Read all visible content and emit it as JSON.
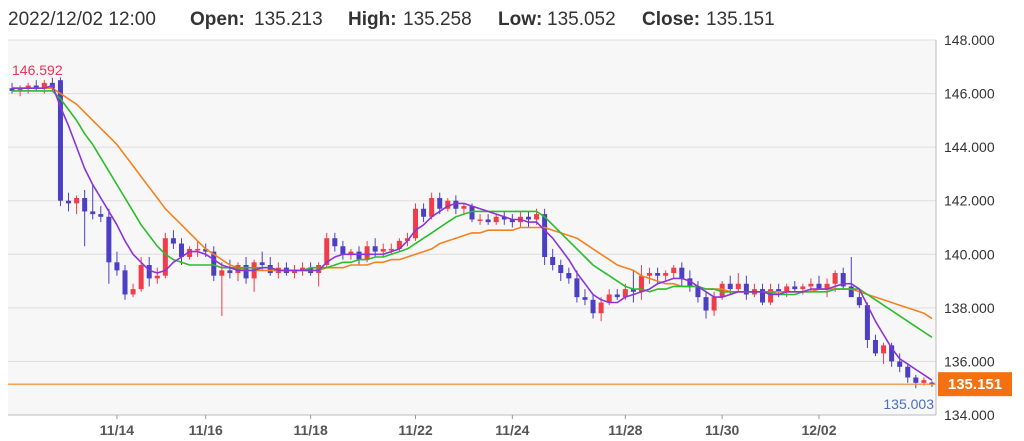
{
  "header": {
    "datetime": "2022/12/02 12:00",
    "open_label": "Open:",
    "open": "135.213",
    "high_label": "High:",
    "high": "135.258",
    "low_label": "Low:",
    "low": "135.052",
    "close_label": "Close:",
    "close": "135.151"
  },
  "colors": {
    "up": "#f23c4a",
    "down": "#4b3fc4",
    "ma_fast": "#8b34d9",
    "ma_mid": "#2bbd2b",
    "ma_slow": "#f58220",
    "close_line": "#f58220",
    "plot_bg": "#f7f7f7",
    "grid": "#dddddd",
    "high_label": "#e8335a",
    "low_label": "#4a6fc2"
  },
  "chart_data": {
    "type": "candlestick",
    "title": "",
    "xlabel": "",
    "ylabel": "",
    "ylim": [
      134.0,
      148.0
    ],
    "y_ticks": [
      "148.000",
      "146.000",
      "144.000",
      "142.000",
      "140.000",
      "138.000",
      "136.000",
      "134.000"
    ],
    "x_tick_labels": [
      "11/14",
      "11/16",
      "11/18",
      "11/22",
      "11/24",
      "11/28",
      "11/30",
      "12/02"
    ],
    "x_tick_index": [
      13,
      24,
      37,
      50,
      62,
      76,
      88,
      100
    ],
    "grid": true,
    "max_label": "146.592",
    "min_label": "135.003",
    "close_value": 135.151,
    "close_tag": "135.151",
    "candles": [
      [
        146.2,
        146.4,
        146.0,
        146.1
      ],
      [
        146.1,
        146.3,
        145.9,
        146.2
      ],
      [
        146.2,
        146.4,
        146.0,
        146.3
      ],
      [
        146.3,
        146.5,
        146.1,
        146.2
      ],
      [
        146.2,
        146.5,
        146.0,
        146.4
      ],
      [
        146.4,
        146.59,
        146.1,
        146.2
      ],
      [
        146.5,
        146.6,
        141.8,
        142.0
      ],
      [
        142.0,
        142.3,
        141.6,
        141.9
      ],
      [
        141.9,
        142.2,
        141.5,
        142.1
      ],
      [
        142.1,
        142.4,
        140.3,
        141.6
      ],
      [
        141.6,
        142.6,
        141.3,
        141.5
      ],
      [
        141.5,
        141.8,
        141.2,
        141.4
      ],
      [
        141.4,
        141.7,
        138.9,
        139.7
      ],
      [
        139.7,
        140.1,
        139.2,
        139.4
      ],
      [
        139.4,
        139.6,
        138.3,
        138.5
      ],
      [
        138.5,
        138.9,
        138.4,
        138.7
      ],
      [
        138.7,
        139.9,
        138.6,
        139.6
      ],
      [
        139.6,
        139.9,
        138.8,
        139.1
      ],
      [
        139.1,
        139.5,
        138.9,
        139.2
      ],
      [
        139.2,
        140.8,
        139.1,
        140.6
      ],
      [
        140.6,
        140.9,
        140.2,
        140.4
      ],
      [
        140.4,
        140.6,
        139.6,
        139.9
      ],
      [
        139.9,
        140.3,
        139.8,
        140.2
      ],
      [
        140.2,
        140.5,
        139.9,
        140.2
      ],
      [
        140.2,
        140.4,
        139.9,
        140.1
      ],
      [
        140.1,
        140.3,
        139.0,
        139.2
      ],
      [
        139.2,
        139.7,
        137.7,
        139.4
      ],
      [
        139.4,
        139.8,
        139.1,
        139.3
      ],
      [
        139.3,
        139.7,
        139.0,
        139.6
      ],
      [
        139.6,
        139.9,
        138.9,
        139.1
      ],
      [
        139.1,
        139.8,
        138.6,
        139.7
      ],
      [
        139.7,
        140.1,
        139.4,
        139.6
      ],
      [
        139.6,
        139.9,
        139.2,
        139.3
      ],
      [
        139.3,
        139.7,
        139.1,
        139.5
      ],
      [
        139.5,
        139.7,
        139.2,
        139.3
      ],
      [
        139.3,
        139.6,
        139.1,
        139.4
      ],
      [
        139.4,
        139.7,
        139.2,
        139.5
      ],
      [
        139.5,
        139.7,
        139.2,
        139.3
      ],
      [
        139.3,
        139.7,
        138.8,
        139.6
      ],
      [
        139.6,
        140.8,
        139.5,
        140.6
      ],
      [
        140.6,
        140.8,
        140.1,
        140.3
      ],
      [
        140.3,
        140.5,
        139.8,
        140.0
      ],
      [
        140.0,
        140.2,
        139.8,
        140.1
      ],
      [
        140.1,
        140.3,
        139.6,
        139.8
      ],
      [
        139.8,
        140.5,
        139.7,
        140.3
      ],
      [
        140.3,
        140.6,
        139.9,
        140.1
      ],
      [
        140.1,
        140.4,
        139.9,
        140.2
      ],
      [
        140.2,
        140.4,
        140.0,
        140.2
      ],
      [
        140.2,
        140.6,
        140.1,
        140.5
      ],
      [
        140.5,
        140.8,
        140.3,
        140.6
      ],
      [
        140.6,
        141.9,
        140.5,
        141.7
      ],
      [
        141.7,
        141.9,
        141.2,
        141.4
      ],
      [
        141.4,
        142.3,
        141.3,
        142.1
      ],
      [
        142.1,
        142.3,
        141.5,
        141.7
      ],
      [
        141.7,
        142.1,
        141.6,
        142.0
      ],
      [
        142.0,
        142.2,
        141.5,
        141.7
      ],
      [
        141.7,
        141.9,
        141.5,
        141.8
      ],
      [
        141.8,
        141.9,
        141.2,
        141.3
      ],
      [
        141.3,
        141.5,
        141.1,
        141.3
      ],
      [
        141.3,
        141.5,
        141.1,
        141.2
      ],
      [
        141.2,
        141.5,
        141.1,
        141.4
      ],
      [
        141.4,
        141.6,
        141.1,
        141.3
      ],
      [
        141.3,
        141.5,
        141.0,
        141.2
      ],
      [
        141.2,
        141.6,
        141.0,
        141.4
      ],
      [
        141.4,
        141.6,
        141.0,
        141.3
      ],
      [
        141.3,
        141.7,
        141.1,
        141.5
      ],
      [
        141.5,
        141.7,
        139.6,
        139.9
      ],
      [
        139.9,
        140.2,
        139.4,
        139.6
      ],
      [
        139.6,
        139.8,
        139.0,
        139.3
      ],
      [
        139.3,
        139.5,
        138.9,
        139.1
      ],
      [
        139.1,
        139.4,
        138.2,
        138.4
      ],
      [
        138.4,
        138.7,
        138.1,
        138.3
      ],
      [
        138.3,
        138.5,
        137.6,
        137.8
      ],
      [
        137.8,
        138.4,
        137.5,
        138.2
      ],
      [
        138.2,
        138.7,
        138.1,
        138.5
      ],
      [
        138.5,
        138.7,
        138.3,
        138.4
      ],
      [
        138.4,
        138.9,
        138.3,
        138.7
      ],
      [
        138.7,
        139.4,
        138.2,
        138.6
      ],
      [
        138.6,
        139.6,
        138.3,
        139.2
      ],
      [
        139.2,
        139.5,
        138.9,
        139.3
      ],
      [
        139.3,
        139.5,
        138.9,
        139.2
      ],
      [
        139.2,
        139.4,
        139.0,
        139.3
      ],
      [
        139.3,
        139.6,
        139.1,
        139.5
      ],
      [
        139.5,
        139.7,
        138.8,
        139.1
      ],
      [
        139.1,
        139.4,
        138.6,
        138.8
      ],
      [
        138.8,
        139.0,
        138.2,
        138.4
      ],
      [
        138.4,
        138.6,
        137.6,
        137.9
      ],
      [
        137.9,
        138.6,
        137.7,
        138.4
      ],
      [
        138.4,
        139.0,
        138.3,
        138.9
      ],
      [
        138.9,
        139.2,
        138.5,
        138.7
      ],
      [
        138.7,
        139.3,
        138.6,
        138.9
      ],
      [
        138.9,
        139.2,
        138.3,
        138.5
      ],
      [
        138.5,
        138.9,
        138.4,
        138.7
      ],
      [
        138.7,
        138.9,
        138.1,
        138.2
      ],
      [
        138.2,
        138.9,
        138.1,
        138.7
      ],
      [
        138.7,
        138.9,
        138.4,
        138.6
      ],
      [
        138.6,
        138.9,
        138.4,
        138.8
      ],
      [
        138.8,
        139.0,
        138.6,
        138.7
      ],
      [
        138.7,
        138.9,
        138.5,
        138.8
      ],
      [
        138.8,
        139.1,
        138.6,
        138.9
      ],
      [
        138.9,
        139.2,
        138.7,
        138.7
      ],
      [
        138.7,
        139.1,
        138.4,
        138.9
      ],
      [
        138.9,
        139.4,
        138.6,
        139.3
      ],
      [
        139.3,
        139.5,
        138.7,
        138.8
      ],
      [
        138.8,
        139.9,
        138.5,
        138.4
      ],
      [
        138.4,
        138.7,
        138.0,
        138.1
      ],
      [
        138.1,
        138.2,
        136.5,
        136.8
      ],
      [
        136.8,
        137.0,
        136.2,
        136.3
      ],
      [
        136.3,
        136.7,
        135.9,
        136.6
      ],
      [
        136.6,
        136.7,
        135.8,
        136.0
      ],
      [
        136.0,
        136.3,
        135.6,
        135.8
      ],
      [
        135.8,
        135.9,
        135.2,
        135.4
      ],
      [
        135.4,
        135.5,
        135.0,
        135.2
      ],
      [
        135.2,
        135.4,
        135.1,
        135.3
      ],
      [
        135.21,
        135.26,
        135.05,
        135.15
      ]
    ],
    "ma_fast": [
      146.2,
      146.2,
      146.2,
      146.2,
      146.2,
      146.3,
      145.5,
      144.8,
      144.0,
      143.2,
      142.6,
      142.1,
      141.6,
      141.1,
      140.5,
      140.0,
      139.7,
      139.4,
      139.3,
      139.4,
      139.7,
      139.9,
      140.1,
      140.1,
      140.0,
      139.8,
      139.6,
      139.5,
      139.4,
      139.4,
      139.4,
      139.5,
      139.5,
      139.4,
      139.4,
      139.4,
      139.4,
      139.4,
      139.4,
      139.7,
      139.9,
      140.0,
      140.0,
      140.0,
      140.0,
      140.0,
      140.0,
      140.1,
      140.2,
      140.5,
      140.9,
      141.1,
      141.4,
      141.6,
      141.8,
      141.9,
      141.9,
      141.8,
      141.7,
      141.6,
      141.5,
      141.4,
      141.3,
      141.3,
      141.2,
      141.2,
      140.9,
      140.6,
      140.2,
      139.8,
      139.3,
      138.9,
      138.5,
      138.3,
      138.2,
      138.2,
      138.4,
      138.5,
      138.6,
      138.7,
      138.9,
      139.0,
      139.1,
      139.1,
      139.0,
      138.8,
      138.6,
      138.4,
      138.4,
      138.5,
      138.6,
      138.6,
      138.6,
      138.6,
      138.5,
      138.5,
      138.6,
      138.6,
      138.6,
      138.7,
      138.7,
      138.7,
      138.8,
      138.9,
      138.9,
      138.7,
      138.1,
      137.5,
      137.0,
      136.5,
      136.1,
      135.9,
      135.7,
      135.5,
      135.3
    ],
    "ma_mid": [
      146.1,
      146.1,
      146.1,
      146.1,
      146.1,
      146.1,
      145.8,
      145.4,
      145.0,
      144.5,
      144.1,
      143.6,
      143.1,
      142.6,
      142.1,
      141.6,
      141.1,
      140.7,
      140.3,
      140.0,
      139.8,
      139.7,
      139.6,
      139.6,
      139.6,
      139.6,
      139.5,
      139.5,
      139.5,
      139.5,
      139.5,
      139.5,
      139.5,
      139.4,
      139.4,
      139.4,
      139.4,
      139.5,
      139.5,
      139.5,
      139.6,
      139.7,
      139.7,
      139.8,
      139.8,
      139.9,
      139.9,
      140.0,
      140.1,
      140.2,
      140.4,
      140.6,
      140.8,
      141.0,
      141.2,
      141.4,
      141.5,
      141.6,
      141.6,
      141.6,
      141.6,
      141.6,
      141.6,
      141.6,
      141.6,
      141.6,
      141.4,
      141.1,
      140.8,
      140.5,
      140.2,
      139.9,
      139.6,
      139.4,
      139.2,
      139.0,
      138.8,
      138.7,
      138.7,
      138.6,
      138.7,
      138.7,
      138.8,
      138.8,
      138.8,
      138.8,
      138.7,
      138.7,
      138.6,
      138.6,
      138.6,
      138.6,
      138.6,
      138.6,
      138.6,
      138.5,
      138.5,
      138.5,
      138.6,
      138.6,
      138.6,
      138.6,
      138.7,
      138.7,
      138.7,
      138.7,
      138.5,
      138.3,
      138.1,
      137.9,
      137.7,
      137.5,
      137.3,
      137.1,
      136.9
    ],
    "ma_slow": [
      146.2,
      146.2,
      146.2,
      146.2,
      146.2,
      146.2,
      146.0,
      145.8,
      145.6,
      145.3,
      145.0,
      144.7,
      144.4,
      144.1,
      143.7,
      143.3,
      142.9,
      142.5,
      142.1,
      141.7,
      141.4,
      141.1,
      140.8,
      140.5,
      140.2,
      140.0,
      139.8,
      139.6,
      139.5,
      139.4,
      139.4,
      139.4,
      139.4,
      139.4,
      139.4,
      139.4,
      139.4,
      139.4,
      139.4,
      139.5,
      139.5,
      139.5,
      139.6,
      139.6,
      139.6,
      139.7,
      139.7,
      139.8,
      139.8,
      139.9,
      140.0,
      140.1,
      140.2,
      140.4,
      140.5,
      140.6,
      140.7,
      140.8,
      140.8,
      140.9,
      140.9,
      140.9,
      140.9,
      141.0,
      141.0,
      141.0,
      141.0,
      140.9,
      140.8,
      140.7,
      140.6,
      140.4,
      140.2,
      140.0,
      139.8,
      139.6,
      139.5,
      139.4,
      139.2,
      139.1,
      139.0,
      138.9,
      138.9,
      138.8,
      138.8,
      138.8,
      138.7,
      138.7,
      138.7,
      138.6,
      138.6,
      138.6,
      138.6,
      138.6,
      138.6,
      138.6,
      138.6,
      138.6,
      138.6,
      138.6,
      138.7,
      138.7,
      138.7,
      138.7,
      138.7,
      138.6,
      138.5,
      138.4,
      138.3,
      138.2,
      138.1,
      138.0,
      137.9,
      137.8,
      137.6
    ]
  }
}
